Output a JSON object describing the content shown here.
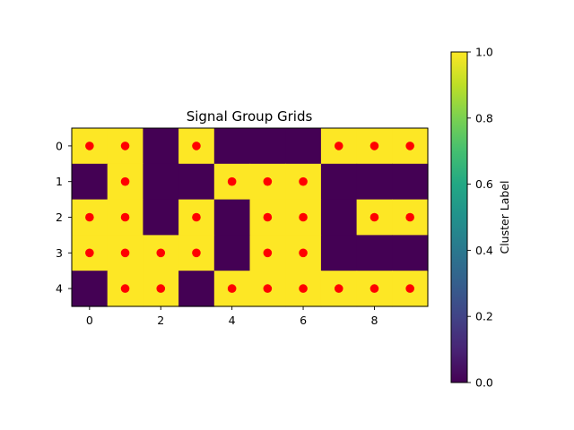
{
  "chart_data": {
    "type": "heatmap",
    "title": "Signal Group Grids",
    "rows": [
      0,
      1,
      2,
      3,
      4
    ],
    "cols": [
      0,
      1,
      2,
      3,
      4,
      5,
      6,
      7,
      8,
      9
    ],
    "values": [
      [
        1,
        1,
        0,
        1,
        0,
        0,
        0,
        1,
        1,
        1
      ],
      [
        0,
        1,
        0,
        0,
        1,
        1,
        1,
        0,
        0,
        0
      ],
      [
        1,
        1,
        0,
        1,
        0,
        1,
        1,
        0,
        1,
        1
      ],
      [
        1,
        1,
        1,
        1,
        0,
        1,
        1,
        0,
        0,
        0
      ],
      [
        0,
        1,
        1,
        0,
        1,
        1,
        1,
        1,
        1,
        1
      ]
    ],
    "markers": {
      "color": "#ff0000",
      "points": [
        [
          0,
          0
        ],
        [
          1,
          0
        ],
        [
          3,
          0
        ],
        [
          7,
          0
        ],
        [
          8,
          0
        ],
        [
          9,
          0
        ],
        [
          1,
          1
        ],
        [
          4,
          1
        ],
        [
          5,
          1
        ],
        [
          6,
          1
        ],
        [
          0,
          2
        ],
        [
          1,
          2
        ],
        [
          3,
          2
        ],
        [
          5,
          2
        ],
        [
          6,
          2
        ],
        [
          8,
          2
        ],
        [
          9,
          2
        ],
        [
          0,
          3
        ],
        [
          1,
          3
        ],
        [
          2,
          3
        ],
        [
          3,
          3
        ],
        [
          5,
          3
        ],
        [
          6,
          3
        ],
        [
          1,
          4
        ],
        [
          2,
          4
        ],
        [
          4,
          4
        ],
        [
          5,
          4
        ],
        [
          6,
          4
        ],
        [
          7,
          4
        ],
        [
          8,
          4
        ],
        [
          9,
          4
        ]
      ]
    },
    "x_ticks": [
      "0",
      "2",
      "4",
      "6",
      "8"
    ],
    "x_tick_values": [
      0,
      2,
      4,
      6,
      8
    ],
    "y_ticks": [
      "0",
      "1",
      "2",
      "3",
      "4"
    ],
    "y_tick_values": [
      0,
      1,
      2,
      3,
      4
    ],
    "colorbar": {
      "label": "Cluster Label",
      "range": [
        0.0,
        1.0
      ],
      "ticks": [
        "0.0",
        "0.2",
        "0.4",
        "0.6",
        "0.8",
        "1.0"
      ],
      "tick_values": [
        0.0,
        0.2,
        0.4,
        0.6,
        0.8,
        1.0
      ],
      "colormap": "viridis"
    },
    "colors": {
      "low": "#440154",
      "high": "#fde725"
    }
  }
}
